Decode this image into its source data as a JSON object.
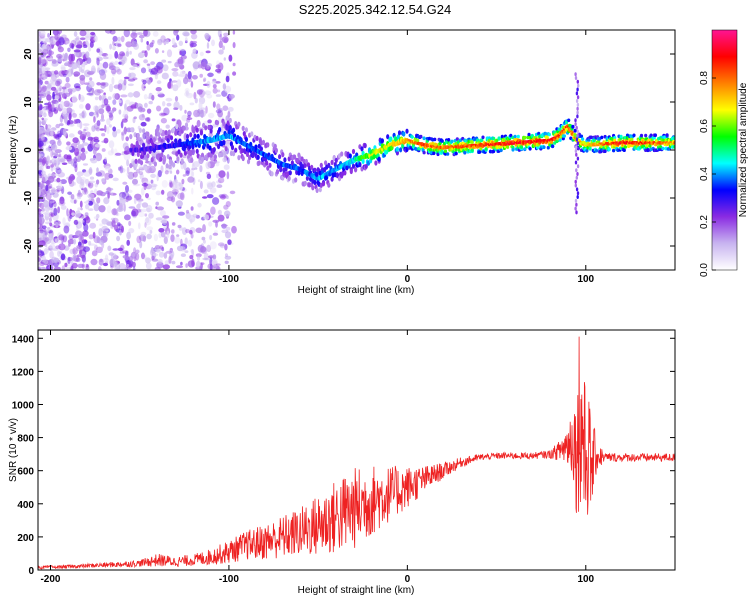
{
  "chart_data": [
    {
      "type": "heatmap",
      "title": "S225.2025.342.12.54.G24",
      "xlabel": "Height of straight line (km)",
      "ylabel": "Frequency (Hz)",
      "xlim": [
        -207,
        150
      ],
      "ylim": [
        -25,
        25
      ],
      "xticks": [
        -200,
        -100,
        0,
        100
      ],
      "yticks": [
        -20,
        -10,
        0,
        10,
        20
      ],
      "colorbar": {
        "label": "Normalized spectral amplitude",
        "range": [
          0,
          1
        ],
        "ticks": [
          "0.0",
          "0.2",
          "0.4",
          "0.6",
          "0.8"
        ],
        "stops": [
          "#ffffff",
          "#c8b4f0",
          "#8a2be2",
          "#0000ff",
          "#00ffff",
          "#00ff00",
          "#ffff00",
          "#ff8000",
          "#ff0000",
          "#ff1493"
        ]
      },
      "ridge": {
        "x_km": [
          -150,
          -130,
          -110,
          -100,
          -90,
          -80,
          -70,
          -60,
          -50,
          -40,
          -30,
          -20,
          -10,
          0,
          10,
          20,
          40,
          60,
          80,
          85,
          90,
          95,
          100,
          120,
          150
        ],
        "freq_hz": [
          0,
          1,
          2,
          3,
          1,
          -1,
          -3,
          -4,
          -6,
          -4,
          -2,
          -1,
          1,
          2,
          1,
          0.5,
          1,
          1.5,
          2,
          3,
          5,
          2,
          1,
          1.5,
          1.5
        ],
        "amplitude": [
          0.3,
          0.35,
          0.45,
          0.45,
          0.4,
          0.4,
          0.4,
          0.4,
          0.45,
          0.45,
          0.5,
          0.7,
          0.75,
          0.8,
          0.9,
          0.85,
          0.9,
          0.95,
          0.95,
          0.9,
          0.9,
          0.8,
          0.75,
          0.95,
          0.8
        ]
      },
      "spike": {
        "x_km": 95,
        "freq_hz_range": [
          -13,
          16
        ]
      }
    },
    {
      "type": "line",
      "xlabel": "Height of straight line (km)",
      "ylabel": "SNR (10 * v/v)",
      "xlim": [
        -207,
        150
      ],
      "ylim": [
        0,
        1450
      ],
      "xticks": [
        -200,
        -100,
        0,
        100
      ],
      "yticks": [
        0,
        200,
        400,
        600,
        800,
        1000,
        1200,
        1400
      ],
      "series": [
        {
          "name": "SNR",
          "color": "#ee2222",
          "x": [
            -207,
            -190,
            -170,
            -150,
            -140,
            -130,
            -120,
            -110,
            -100,
            -90,
            -80,
            -70,
            -60,
            -50,
            -40,
            -30,
            -20,
            -10,
            0,
            10,
            20,
            30,
            40,
            50,
            60,
            70,
            80,
            85,
            90,
            93,
            95,
            97,
            99,
            101,
            103,
            105,
            110,
            120,
            130,
            140,
            150
          ],
          "y": [
            15,
            20,
            30,
            40,
            60,
            50,
            60,
            80,
            110,
            150,
            170,
            200,
            230,
            270,
            320,
            370,
            420,
            460,
            500,
            550,
            600,
            650,
            680,
            690,
            690,
            690,
            700,
            720,
            760,
            800,
            700,
            900,
            650,
            750,
            600,
            700,
            680,
            680,
            680,
            680,
            680
          ],
          "noise": [
            10,
            10,
            15,
            20,
            40,
            30,
            35,
            50,
            70,
            90,
            110,
            130,
            150,
            190,
            230,
            250,
            220,
            170,
            130,
            80,
            50,
            30,
            20,
            20,
            20,
            20,
            25,
            60,
            150,
            250,
            400,
            500,
            500,
            450,
            300,
            150,
            30,
            25,
            25,
            25,
            25
          ]
        }
      ]
    }
  ]
}
